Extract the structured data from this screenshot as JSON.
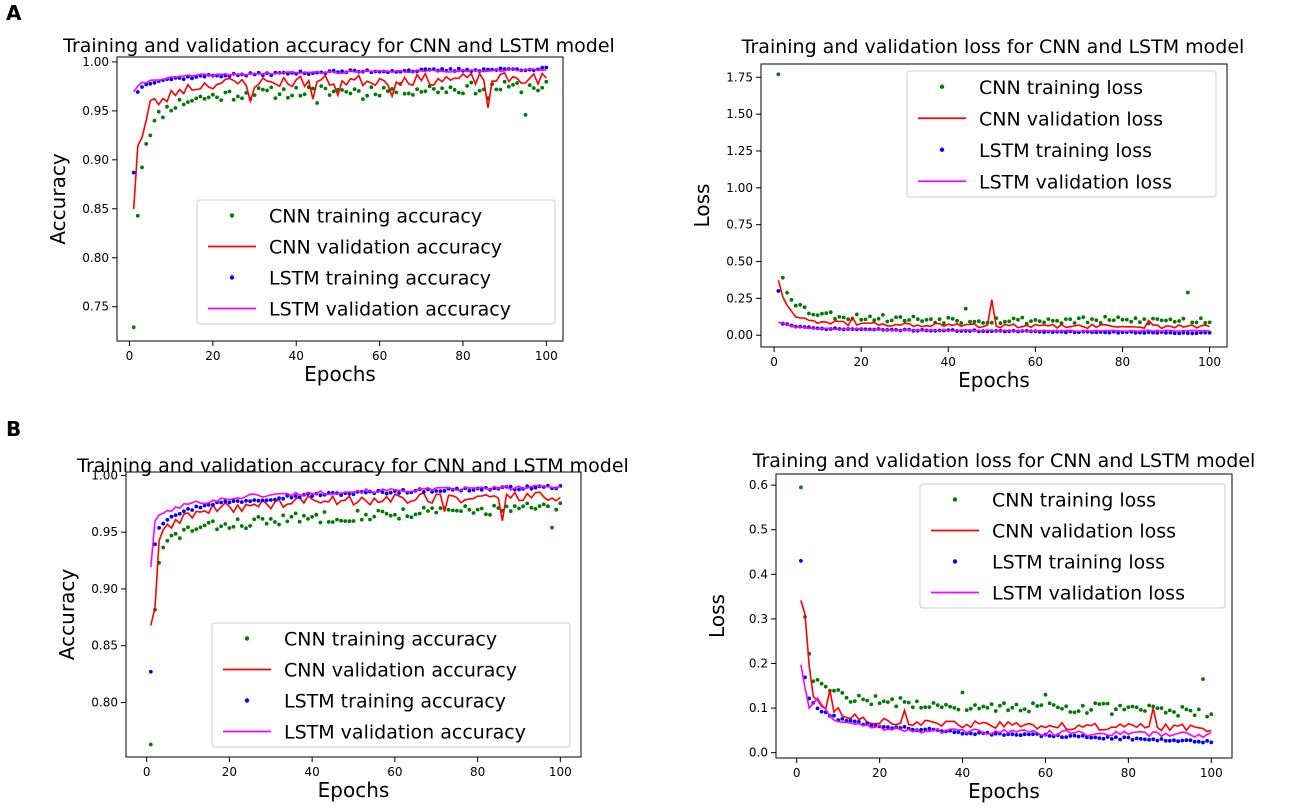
{
  "panel_labels": [
    "A",
    "B"
  ],
  "chart_data": [
    {
      "type": "line",
      "panel": "A",
      "title": "Training and validation accuracy for CNN and LSTM model",
      "xlabel": "Epochs",
      "ylabel": "Accuracy",
      "xlim": [
        -3,
        104
      ],
      "ylim": [
        0.715,
        1.005
      ],
      "xticks": [
        0,
        20,
        40,
        60,
        80,
        100
      ],
      "yticks": [
        0.75,
        0.8,
        0.85,
        0.9,
        0.95,
        1.0
      ],
      "ytick_labels": [
        "0.75",
        "0.80",
        "0.85",
        "0.90",
        "0.95",
        "1.00"
      ],
      "legend": {
        "position": "lower-right",
        "entries": [
          "CNN training accuracy",
          "CNN validation accuracy",
          "LSTM training accuracy",
          "LSTM validation accuracy"
        ]
      },
      "series": [
        {
          "name": "CNN training accuracy",
          "style": "points",
          "color": "#007a00",
          "gen": {
            "y1": 0.729,
            "anchors": [
              [
                2,
                0.846
              ],
              [
                3,
                0.895
              ],
              [
                4,
                0.918
              ],
              [
                5,
                0.93
              ],
              [
                7,
                0.945
              ],
              [
                10,
                0.955
              ],
              [
                15,
                0.962
              ],
              [
                25,
                0.967
              ],
              [
                45,
                0.97
              ],
              [
                70,
                0.972
              ],
              [
                100,
                0.975
              ]
            ],
            "amp": 0.006,
            "seed": 11,
            "dips": [
              [
                45,
                0.958
              ],
              [
                95,
                0.946
              ],
              [
                56,
                0.962
              ],
              [
                86,
                0.963
              ]
            ]
          }
        },
        {
          "name": "CNN validation accuracy",
          "style": "line",
          "color": "#ff0000",
          "gen": {
            "anchors": [
              [
                1,
                0.853
              ],
              [
                2,
                0.916
              ],
              [
                3,
                0.922
              ],
              [
                4,
                0.94
              ],
              [
                5,
                0.958
              ],
              [
                8,
                0.96
              ],
              [
                12,
                0.972
              ],
              [
                20,
                0.978
              ],
              [
                40,
                0.98
              ],
              [
                70,
                0.982
              ],
              [
                100,
                0.983
              ]
            ],
            "amp": 0.006,
            "seed": 23,
            "dips": [
              [
                29,
                0.96
              ],
              [
                44,
                0.962
              ],
              [
                50,
                0.966
              ],
              [
                63,
                0.965
              ],
              [
                86,
                0.953
              ]
            ]
          }
        },
        {
          "name": "LSTM training accuracy",
          "style": "points",
          "color": "#0000ff",
          "gen": {
            "y1": 0.887,
            "anchors": [
              [
                2,
                0.97
              ],
              [
                4,
                0.978
              ],
              [
                8,
                0.982
              ],
              [
                20,
                0.986
              ],
              [
                50,
                0.99
              ],
              [
                100,
                0.993
              ]
            ],
            "amp": 0.0015,
            "seed": 37,
            "dips": []
          }
        },
        {
          "name": "LSTM validation accuracy",
          "style": "line",
          "color": "#ff00ff",
          "gen": {
            "anchors": [
              [
                1,
                0.97
              ],
              [
                3,
                0.978
              ],
              [
                6,
                0.982
              ],
              [
                15,
                0.986
              ],
              [
                40,
                0.989
              ],
              [
                100,
                0.992
              ]
            ],
            "amp": 0.0012,
            "seed": 41,
            "dips": []
          }
        }
      ]
    },
    {
      "type": "line",
      "panel": "A",
      "title": "Training and validation loss for CNN and LSTM model",
      "xlabel": "Epochs",
      "ylabel": "Loss",
      "xlim": [
        -3,
        104
      ],
      "ylim": [
        -0.08,
        1.84
      ],
      "xticks": [
        0,
        20,
        40,
        60,
        80,
        100
      ],
      "yticks": [
        0.0,
        0.25,
        0.5,
        0.75,
        1.0,
        1.25,
        1.5,
        1.75
      ],
      "ytick_labels": [
        "0.00",
        "0.25",
        "0.50",
        "0.75",
        "1.00",
        "1.25",
        "1.50",
        "1.75"
      ],
      "legend": {
        "position": "upper-right",
        "entries": [
          "CNN training loss",
          "CNN validation loss",
          "LSTM training loss",
          "LSTM validation loss"
        ]
      },
      "series": [
        {
          "name": "CNN training loss",
          "style": "points",
          "color": "#007a00",
          "gen": {
            "y1": 1.77,
            "anchors": [
              [
                2,
                0.39
              ],
              [
                3,
                0.3
              ],
              [
                5,
                0.22
              ],
              [
                8,
                0.16
              ],
              [
                15,
                0.13
              ],
              [
                30,
                0.11
              ],
              [
                60,
                0.1
              ],
              [
                100,
                0.1
              ]
            ],
            "amp": 0.025,
            "seed": 53,
            "dips": [
              [
                95,
                0.29
              ],
              [
                44,
                0.18
              ],
              [
                2,
                0.39
              ]
            ]
          }
        },
        {
          "name": "CNN validation loss",
          "style": "line",
          "color": "#ff0000",
          "gen": {
            "anchors": [
              [
                1,
                0.38
              ],
              [
                2,
                0.25
              ],
              [
                4,
                0.15
              ],
              [
                8,
                0.1
              ],
              [
                15,
                0.08
              ],
              [
                30,
                0.07
              ],
              [
                60,
                0.06
              ],
              [
                100,
                0.06
              ]
            ],
            "amp": 0.015,
            "seed": 61,
            "dips": [
              [
                50,
                0.24
              ],
              [
                18,
                0.12
              ],
              [
                86,
                0.1
              ]
            ]
          }
        },
        {
          "name": "LSTM training loss",
          "style": "points",
          "color": "#0000ff",
          "gen": {
            "y1": 0.3,
            "anchors": [
              [
                2,
                0.08
              ],
              [
                5,
                0.06
              ],
              [
                10,
                0.045
              ],
              [
                30,
                0.035
              ],
              [
                60,
                0.025
              ],
              [
                100,
                0.015
              ]
            ],
            "amp": 0.004,
            "seed": 71,
            "dips": []
          }
        },
        {
          "name": "LSTM validation loss",
          "style": "line",
          "color": "#ff00ff",
          "gen": {
            "anchors": [
              [
                1,
                0.09
              ],
              [
                4,
                0.06
              ],
              [
                10,
                0.045
              ],
              [
                30,
                0.035
              ],
              [
                60,
                0.03
              ],
              [
                100,
                0.03
              ]
            ],
            "amp": 0.004,
            "seed": 79,
            "dips": []
          }
        }
      ]
    },
    {
      "type": "line",
      "panel": "B",
      "title": "Training and validation accuracy for CNN and LSTM model",
      "xlabel": "Epochs",
      "ylabel": "Accuracy",
      "xlim": [
        -5,
        105
      ],
      "ylim": [
        0.752,
        1.003
      ],
      "xticks": [
        0,
        20,
        40,
        60,
        80,
        100
      ],
      "yticks": [
        0.8,
        0.85,
        0.9,
        0.95,
        1.0
      ],
      "ytick_labels": [
        "0.80",
        "0.85",
        "0.90",
        "0.95",
        "1.00"
      ],
      "legend": {
        "position": "lower-right",
        "entries": [
          "CNN training accuracy",
          "CNN validation accuracy",
          "LSTM training accuracy",
          "LSTM validation accuracy"
        ]
      },
      "series": [
        {
          "name": "CNN training accuracy",
          "style": "points",
          "color": "#007a00",
          "gen": {
            "y1": 0.763,
            "anchors": [
              [
                2,
                0.884
              ],
              [
                3,
                0.92
              ],
              [
                4,
                0.935
              ],
              [
                6,
                0.945
              ],
              [
                10,
                0.952
              ],
              [
                20,
                0.957
              ],
              [
                40,
                0.963
              ],
              [
                70,
                0.968
              ],
              [
                100,
                0.972
              ]
            ],
            "amp": 0.005,
            "seed": 83,
            "dips": [
              [
                98,
                0.954
              ]
            ]
          }
        },
        {
          "name": "CNN validation accuracy",
          "style": "line",
          "color": "#ff0000",
          "gen": {
            "anchors": [
              [
                1,
                0.87
              ],
              [
                2,
                0.885
              ],
              [
                3,
                0.94
              ],
              [
                5,
                0.955
              ],
              [
                10,
                0.965
              ],
              [
                20,
                0.972
              ],
              [
                40,
                0.978
              ],
              [
                70,
                0.98
              ],
              [
                100,
                0.982
              ]
            ],
            "amp": 0.005,
            "seed": 89,
            "dips": [
              [
                86,
                0.96
              ],
              [
                72,
                0.968
              ]
            ]
          }
        },
        {
          "name": "LSTM training accuracy",
          "style": "points",
          "color": "#0000ff",
          "gen": {
            "y1": 0.827,
            "anchors": [
              [
                2,
                0.94
              ],
              [
                3,
                0.955
              ],
              [
                6,
                0.965
              ],
              [
                15,
                0.975
              ],
              [
                40,
                0.983
              ],
              [
                70,
                0.987
              ],
              [
                100,
                0.99
              ]
            ],
            "amp": 0.0015,
            "seed": 97,
            "dips": []
          }
        },
        {
          "name": "LSTM validation accuracy",
          "style": "line",
          "color": "#ff00ff",
          "gen": {
            "anchors": [
              [
                1,
                0.92
              ],
              [
                2,
                0.96
              ],
              [
                4,
                0.967
              ],
              [
                10,
                0.975
              ],
              [
                25,
                0.982
              ],
              [
                50,
                0.986
              ],
              [
                100,
                0.99
              ]
            ],
            "amp": 0.0018,
            "seed": 101,
            "dips": []
          }
        }
      ]
    },
    {
      "type": "line",
      "panel": "B",
      "title": "Training and validation loss for CNN and LSTM model",
      "xlabel": "Epochs",
      "ylabel": "Loss",
      "xlim": [
        -5,
        105
      ],
      "ylim": [
        -0.012,
        0.625
      ],
      "xticks": [
        0,
        20,
        40,
        60,
        80,
        100
      ],
      "yticks": [
        0.0,
        0.1,
        0.2,
        0.3,
        0.4,
        0.5,
        0.6
      ],
      "ytick_labels": [
        "0.0",
        "0.1",
        "0.2",
        "0.3",
        "0.4",
        "0.5",
        "0.6"
      ],
      "legend": {
        "position": "upper-right",
        "entries": [
          "CNN training loss",
          "CNN validation loss",
          "LSTM training loss",
          "LSTM validation loss"
        ]
      },
      "series": [
        {
          "name": "CNN training loss",
          "style": "points",
          "color": "#007a00",
          "gen": {
            "y1": 0.595,
            "anchors": [
              [
                2,
                0.31
              ],
              [
                3,
                0.21
              ],
              [
                4,
                0.17
              ],
              [
                6,
                0.15
              ],
              [
                10,
                0.13
              ],
              [
                20,
                0.115
              ],
              [
                40,
                0.105
              ],
              [
                70,
                0.1
              ],
              [
                100,
                0.09
              ]
            ],
            "amp": 0.012,
            "seed": 107,
            "dips": [
              [
                98,
                0.165
              ],
              [
                40,
                0.135
              ],
              [
                60,
                0.13
              ]
            ]
          }
        },
        {
          "name": "CNN validation loss",
          "style": "line",
          "color": "#ff0000",
          "gen": {
            "anchors": [
              [
                1,
                0.345
              ],
              [
                2,
                0.31
              ],
              [
                3,
                0.2
              ],
              [
                4,
                0.12
              ],
              [
                8,
                0.1
              ],
              [
                15,
                0.075
              ],
              [
                30,
                0.065
              ],
              [
                60,
                0.06
              ],
              [
                100,
                0.055
              ]
            ],
            "amp": 0.008,
            "seed": 113,
            "dips": [
              [
                86,
                0.1
              ],
              [
                26,
                0.095
              ],
              [
                8,
                0.14
              ]
            ]
          }
        },
        {
          "name": "LSTM training loss",
          "style": "points",
          "color": "#0000ff",
          "gen": {
            "y1": 0.43,
            "anchors": [
              [
                2,
                0.17
              ],
              [
                3,
                0.12
              ],
              [
                5,
                0.1
              ],
              [
                10,
                0.075
              ],
              [
                20,
                0.06
              ],
              [
                40,
                0.045
              ],
              [
                70,
                0.035
              ],
              [
                100,
                0.025
              ]
            ],
            "amp": 0.003,
            "seed": 127,
            "dips": []
          }
        },
        {
          "name": "LSTM validation loss",
          "style": "line",
          "color": "#ff00ff",
          "gen": {
            "anchors": [
              [
                1,
                0.2
              ],
              [
                2,
                0.15
              ],
              [
                3,
                0.1
              ],
              [
                5,
                0.12
              ],
              [
                8,
                0.08
              ],
              [
                15,
                0.06
              ],
              [
                30,
                0.05
              ],
              [
                60,
                0.045
              ],
              [
                100,
                0.04
              ]
            ],
            "amp": 0.006,
            "seed": 131,
            "dips": []
          }
        }
      ]
    }
  ]
}
